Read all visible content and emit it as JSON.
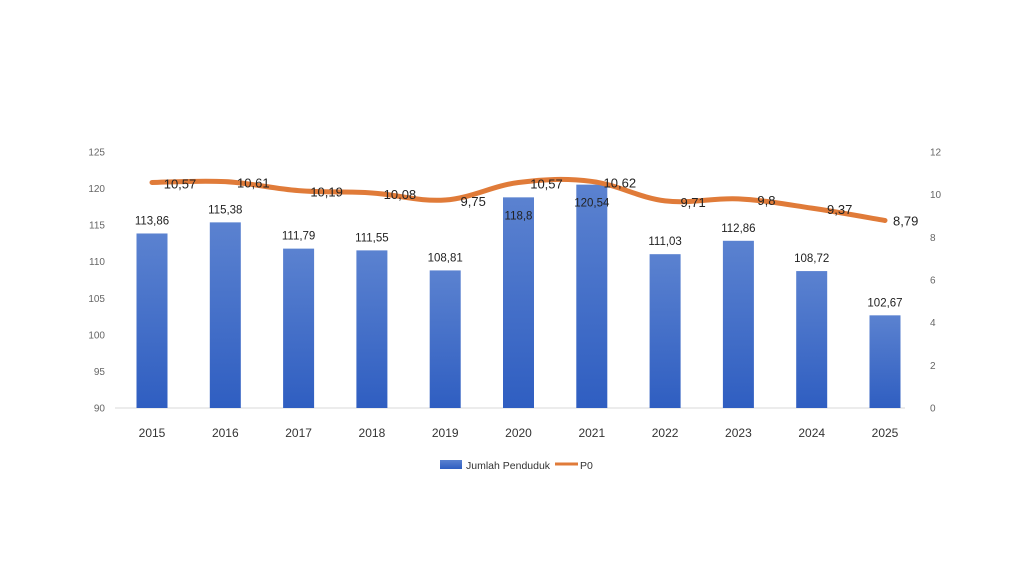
{
  "chart_data": {
    "type": "bar+line",
    "categories": [
      "2015",
      "2016",
      "2017",
      "2018",
      "2019",
      "2020",
      "2021",
      "2022",
      "2023",
      "2024",
      "2025"
    ],
    "series": [
      {
        "name": "Jumlah Penduduk",
        "type": "bar",
        "axis": "left",
        "color": "#4472c4",
        "values": [
          113.86,
          115.38,
          111.79,
          111.55,
          108.81,
          118.8,
          120.54,
          111.03,
          112.86,
          108.72,
          102.67
        ],
        "labels": [
          "113,86",
          "115,38",
          "111,79",
          "111,55",
          "108,81",
          "118,8",
          "120,54",
          "111,03",
          "112,86",
          "108,72",
          "102,67"
        ]
      },
      {
        "name": "P0",
        "type": "line",
        "axis": "right",
        "color": "#e07b39",
        "values": [
          10.57,
          10.61,
          10.19,
          10.08,
          9.75,
          10.57,
          10.62,
          9.71,
          9.8,
          9.37,
          8.79
        ],
        "labels": [
          "10,57",
          "10,61",
          "10,19",
          "10,08",
          "9,75",
          "10,57",
          "10,62",
          "9,71",
          "9,8",
          "9,37",
          "8,79"
        ]
      }
    ],
    "left_axis": {
      "ylim": [
        90,
        125
      ],
      "ticks": [
        "90",
        "95",
        "100",
        "105",
        "110",
        "115",
        "120",
        "125"
      ]
    },
    "right_axis": {
      "ylim": [
        0,
        12
      ],
      "ticks": [
        "0",
        "2",
        "4",
        "6",
        "8",
        "10",
        "12"
      ]
    },
    "grid": false,
    "legend": "bottom"
  }
}
